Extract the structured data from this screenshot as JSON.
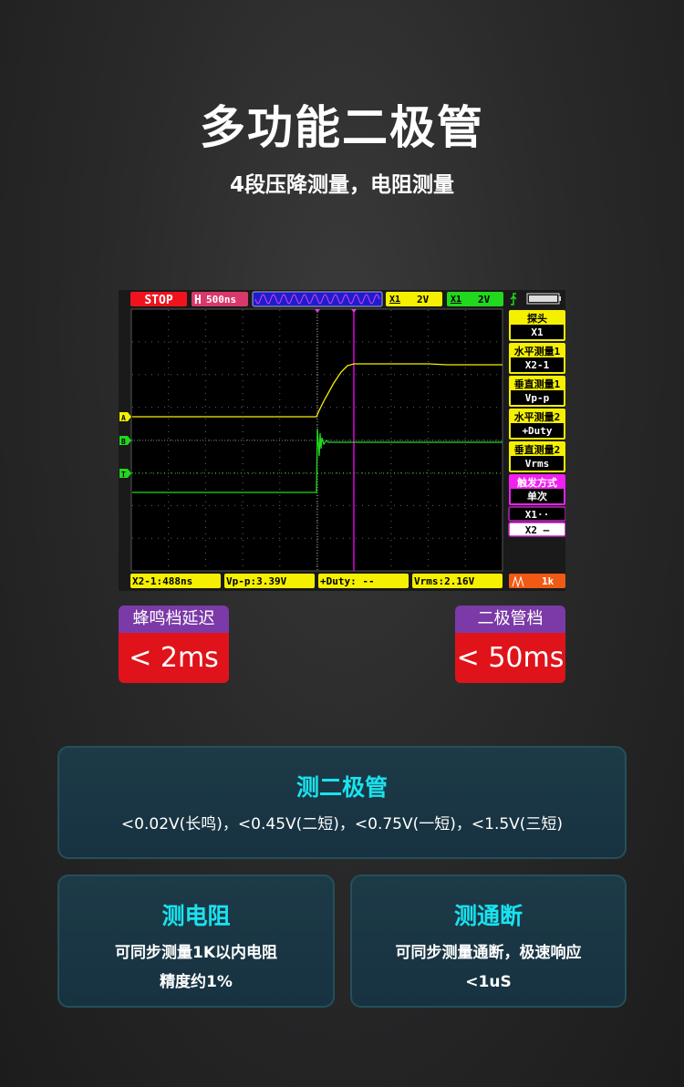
{
  "header": {
    "title": "多功能二极管",
    "subtitle": "4段压降测量，电阻测量"
  },
  "scope": {
    "status": "STOP",
    "timebase_prefix": "H",
    "timebase": "500ns",
    "ch1": {
      "probe": "X1",
      "scale": "2V",
      "color": "#f5f000"
    },
    "ch2": {
      "probe": "X1",
      "scale": "2V",
      "color": "#22d81e"
    },
    "markers": {
      "a": "A",
      "b": "B",
      "t": "T"
    },
    "side": [
      {
        "label": "探头",
        "value": "X1"
      },
      {
        "label": "水平测量1",
        "value": "X2-1"
      },
      {
        "label": "垂直测量1",
        "value": "Vp-p"
      },
      {
        "label": "水平测量2",
        "value": "+Duty"
      },
      {
        "label": "垂直测量2",
        "value": "Vrms"
      },
      {
        "label": "触发方式",
        "value": "单次"
      }
    ],
    "cursor1": "X1··",
    "cursor2": "X2 —",
    "bottom": [
      "X2-1:488ns",
      "Vp-p:3.39V",
      "+Duty: --",
      "Vrms:2.16V"
    ],
    "gen": "1k"
  },
  "badges": [
    {
      "label": "蜂鸣档延迟",
      "value": "< 2ms"
    },
    {
      "label": "二极管档",
      "value": "< 50ms"
    }
  ],
  "cards": [
    {
      "title": "测二极管",
      "lines": [
        "<0.02V(长鸣)，<0.45V(二短)，<0.75V(一短)，<1.5V(三短)"
      ]
    },
    {
      "title": "测电阻",
      "lines": [
        "可同步测量1K以内电阻",
        "精度约1%"
      ]
    },
    {
      "title": "测通断",
      "lines": [
        "可同步测量通断，极速响应",
        "<1uS"
      ]
    }
  ]
}
